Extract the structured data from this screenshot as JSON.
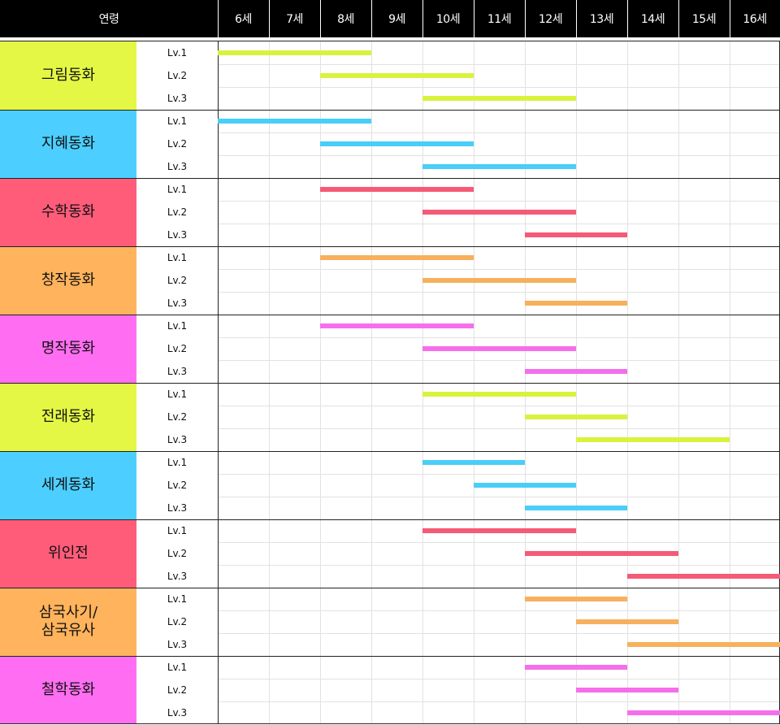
{
  "chart_data": {
    "type": "gantt",
    "header_label": "연령",
    "ages": [
      "6세",
      "7세",
      "8세",
      "9세",
      "10세",
      "11세",
      "12세",
      "13세",
      "14세",
      "15세",
      "16세"
    ],
    "age_min": 6,
    "age_max": 16,
    "categories": [
      {
        "name": "그림동화",
        "color": "#e3f744",
        "bar_color": "#d9f23e",
        "levels": [
          {
            "label": "Lv.1",
            "start": 6,
            "end": 9
          },
          {
            "label": "Lv.2",
            "start": 8,
            "end": 11
          },
          {
            "label": "Lv.3",
            "start": 10,
            "end": 13
          }
        ]
      },
      {
        "name": "지혜동화",
        "color": "#4ccfff",
        "bar_color": "#49cef7",
        "levels": [
          {
            "label": "Lv.1",
            "start": 6,
            "end": 9
          },
          {
            "label": "Lv.2",
            "start": 8,
            "end": 11
          },
          {
            "label": "Lv.3",
            "start": 10,
            "end": 13
          }
        ]
      },
      {
        "name": "수학동화",
        "color": "#ff5c7a",
        "bar_color": "#f55a77",
        "levels": [
          {
            "label": "Lv.1",
            "start": 8,
            "end": 11
          },
          {
            "label": "Lv.2",
            "start": 10,
            "end": 13
          },
          {
            "label": "Lv.3",
            "start": 12,
            "end": 14
          }
        ]
      },
      {
        "name": "창작동화",
        "color": "#ffb35c",
        "bar_color": "#f7b05c",
        "levels": [
          {
            "label": "Lv.1",
            "start": 8,
            "end": 11
          },
          {
            "label": "Lv.2",
            "start": 10,
            "end": 13
          },
          {
            "label": "Lv.3",
            "start": 12,
            "end": 14
          }
        ]
      },
      {
        "name": "명작동화",
        "color": "#ff6ef2",
        "bar_color": "#f56eec",
        "levels": [
          {
            "label": "Lv.1",
            "start": 8,
            "end": 11
          },
          {
            "label": "Lv.2",
            "start": 10,
            "end": 13
          },
          {
            "label": "Lv.3",
            "start": 12,
            "end": 14
          }
        ]
      },
      {
        "name": "전래동화",
        "color": "#e3f744",
        "bar_color": "#d9f23e",
        "levels": [
          {
            "label": "Lv.1",
            "start": 10,
            "end": 13
          },
          {
            "label": "Lv.2",
            "start": 12,
            "end": 14
          },
          {
            "label": "Lv.3",
            "start": 13,
            "end": 16
          }
        ]
      },
      {
        "name": "세계동화",
        "color": "#4ccfff",
        "bar_color": "#49cef7",
        "levels": [
          {
            "label": "Lv.1",
            "start": 10,
            "end": 12
          },
          {
            "label": "Lv.2",
            "start": 11,
            "end": 13
          },
          {
            "label": "Lv.3",
            "start": 12,
            "end": 14
          }
        ]
      },
      {
        "name": "위인전",
        "color": "#ff5c7a",
        "bar_color": "#f55a77",
        "levels": [
          {
            "label": "Lv.1",
            "start": 10,
            "end": 13
          },
          {
            "label": "Lv.2",
            "start": 12,
            "end": 15
          },
          {
            "label": "Lv.3",
            "start": 14,
            "end": 17
          }
        ]
      },
      {
        "name": "삼국사기/\n삼국유사",
        "color": "#ffb35c",
        "bar_color": "#f7b05c",
        "levels": [
          {
            "label": "Lv.1",
            "start": 12,
            "end": 14
          },
          {
            "label": "Lv.2",
            "start": 13,
            "end": 15
          },
          {
            "label": "Lv.3",
            "start": 14,
            "end": 17
          }
        ]
      },
      {
        "name": "철학동화",
        "color": "#ff6ef2",
        "bar_color": "#f56eec",
        "levels": [
          {
            "label": "Lv.1",
            "start": 12,
            "end": 14
          },
          {
            "label": "Lv.2",
            "start": 13,
            "end": 15
          },
          {
            "label": "Lv.3",
            "start": 14,
            "end": 17
          }
        ]
      }
    ]
  }
}
